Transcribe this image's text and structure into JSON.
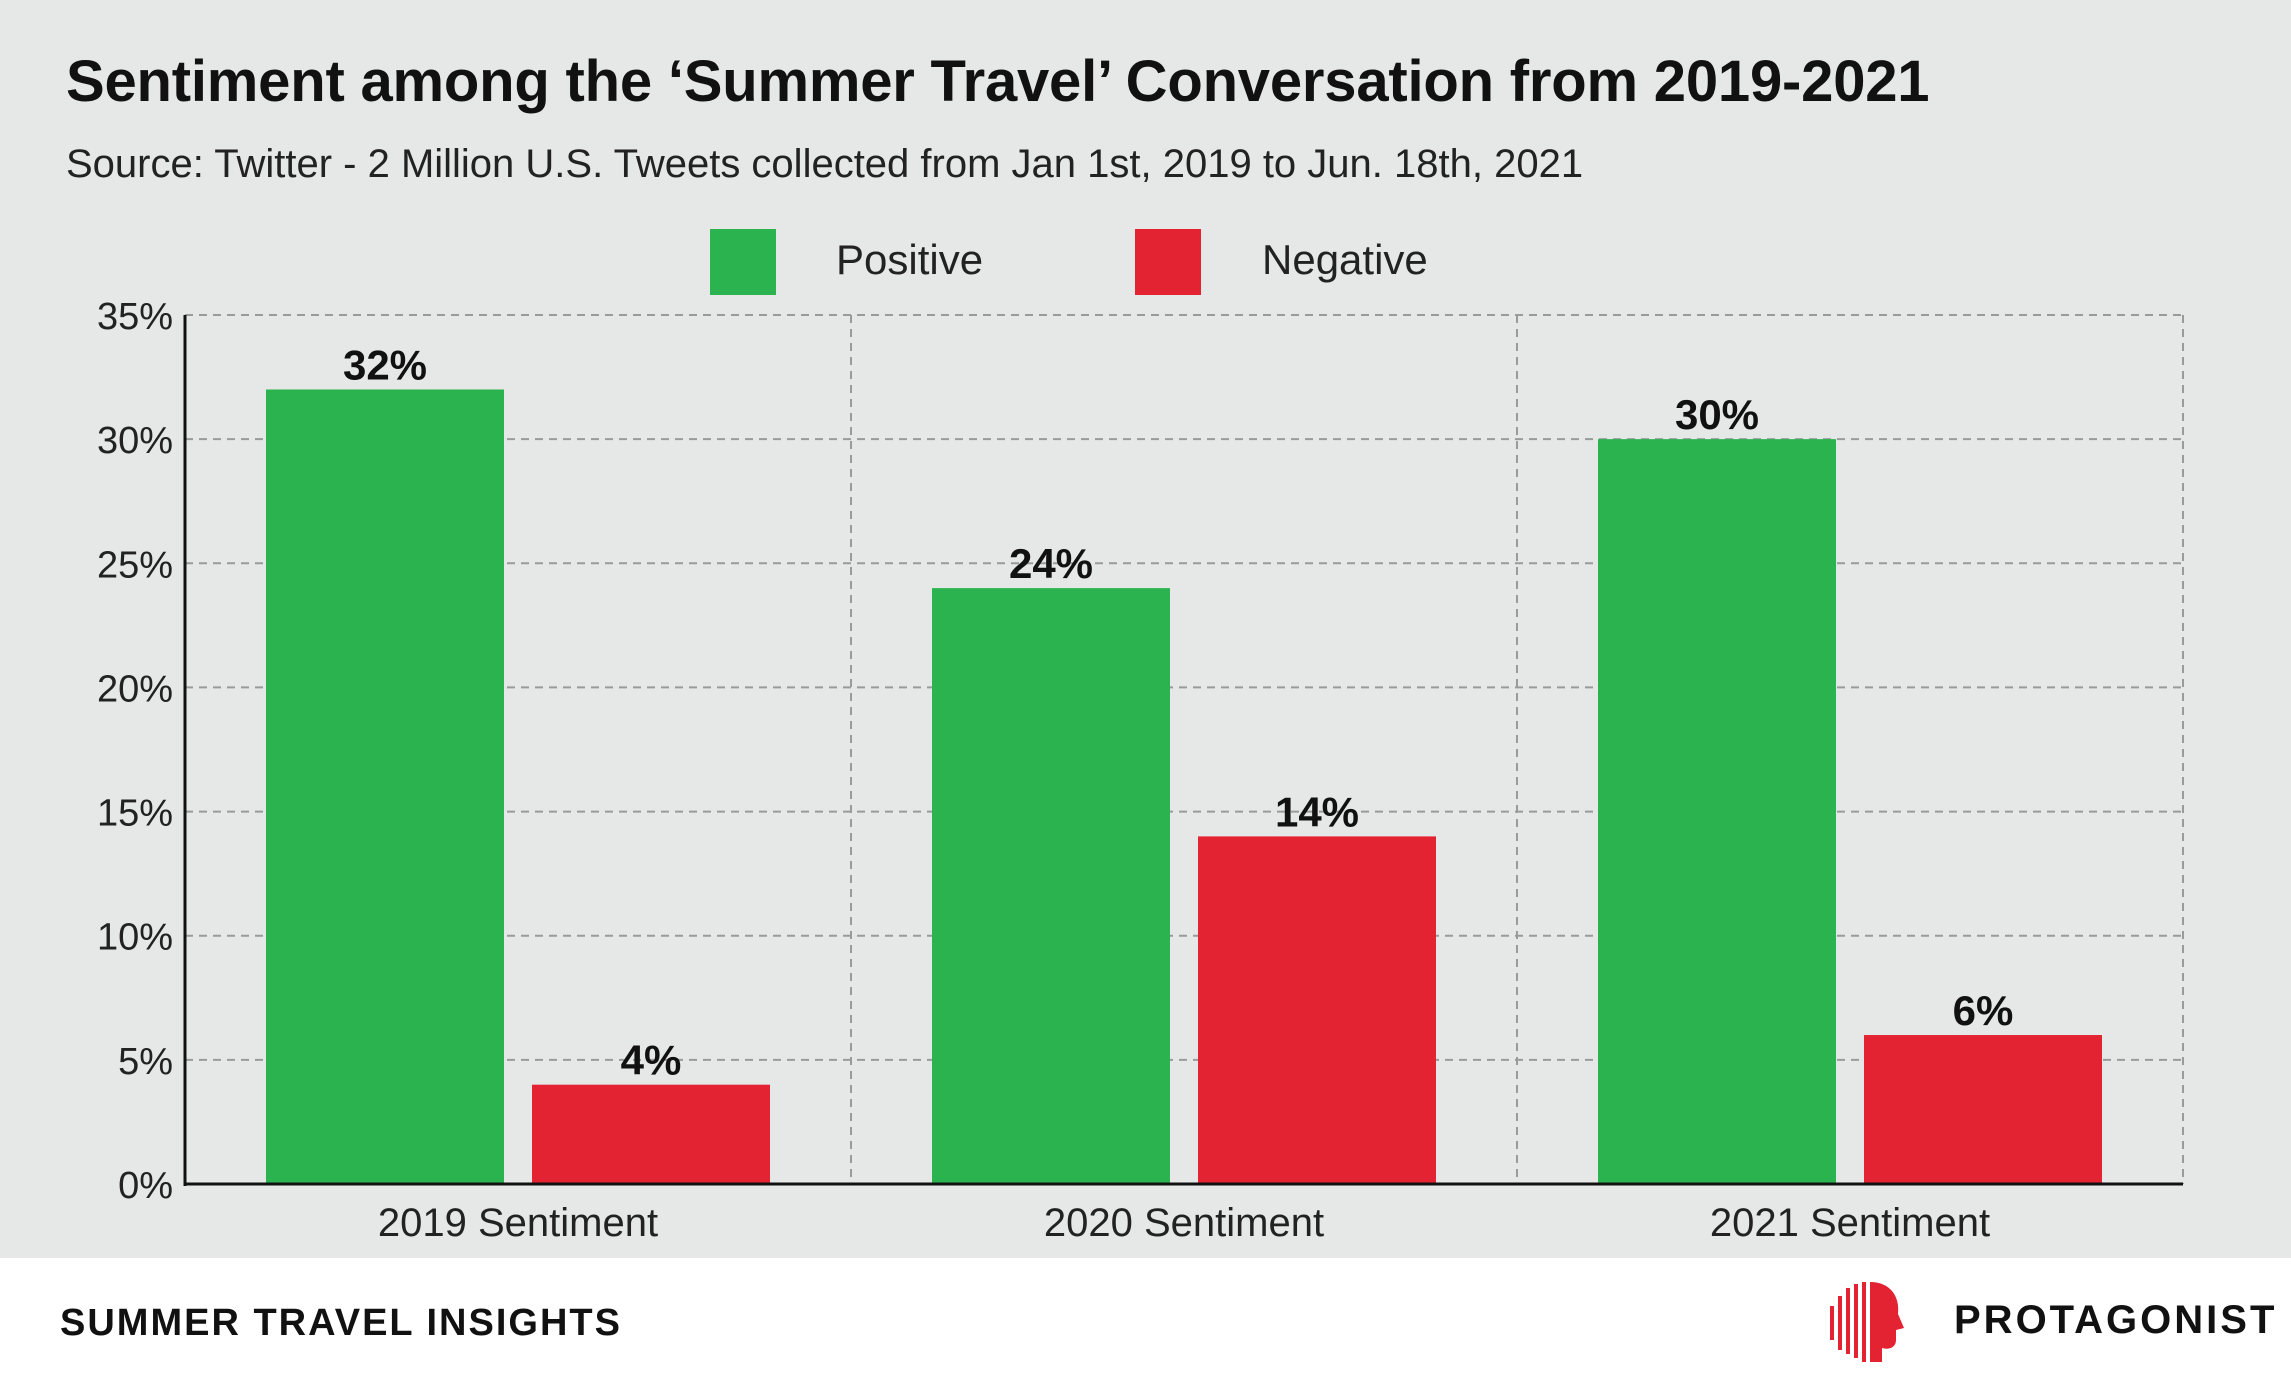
{
  "chart_data": {
    "type": "bar",
    "title": "Sentiment among the ‘Summer Travel’ Conversation from 2019-2021",
    "subtitle": "Source: Twitter - 2 Million U.S. Tweets collected from Jan 1st, 2019 to Jun. 18th, 2021",
    "categories": [
      "2019 Sentiment",
      "2020 Sentiment",
      "2021 Sentiment"
    ],
    "series": [
      {
        "name": "Positive",
        "color": "#2bb34f",
        "values": [
          32,
          24,
          30
        ],
        "labels": [
          "32%",
          "24%",
          "30%"
        ]
      },
      {
        "name": "Negative",
        "color": "#e32232",
        "values": [
          4,
          14,
          6
        ],
        "labels": [
          "4%",
          "14%",
          "6%"
        ]
      }
    ],
    "yticks": [
      "0%",
      "5%",
      "10%",
      "15%",
      "20%",
      "25%",
      "30%",
      "35%"
    ],
    "ylim": [
      0,
      35
    ],
    "grid": true,
    "legend": "top-center"
  },
  "footer": {
    "left_text": "SUMMER TRAVEL INSIGHTS",
    "brand": "PROTAGONIST",
    "brand_color": "#e32232"
  }
}
